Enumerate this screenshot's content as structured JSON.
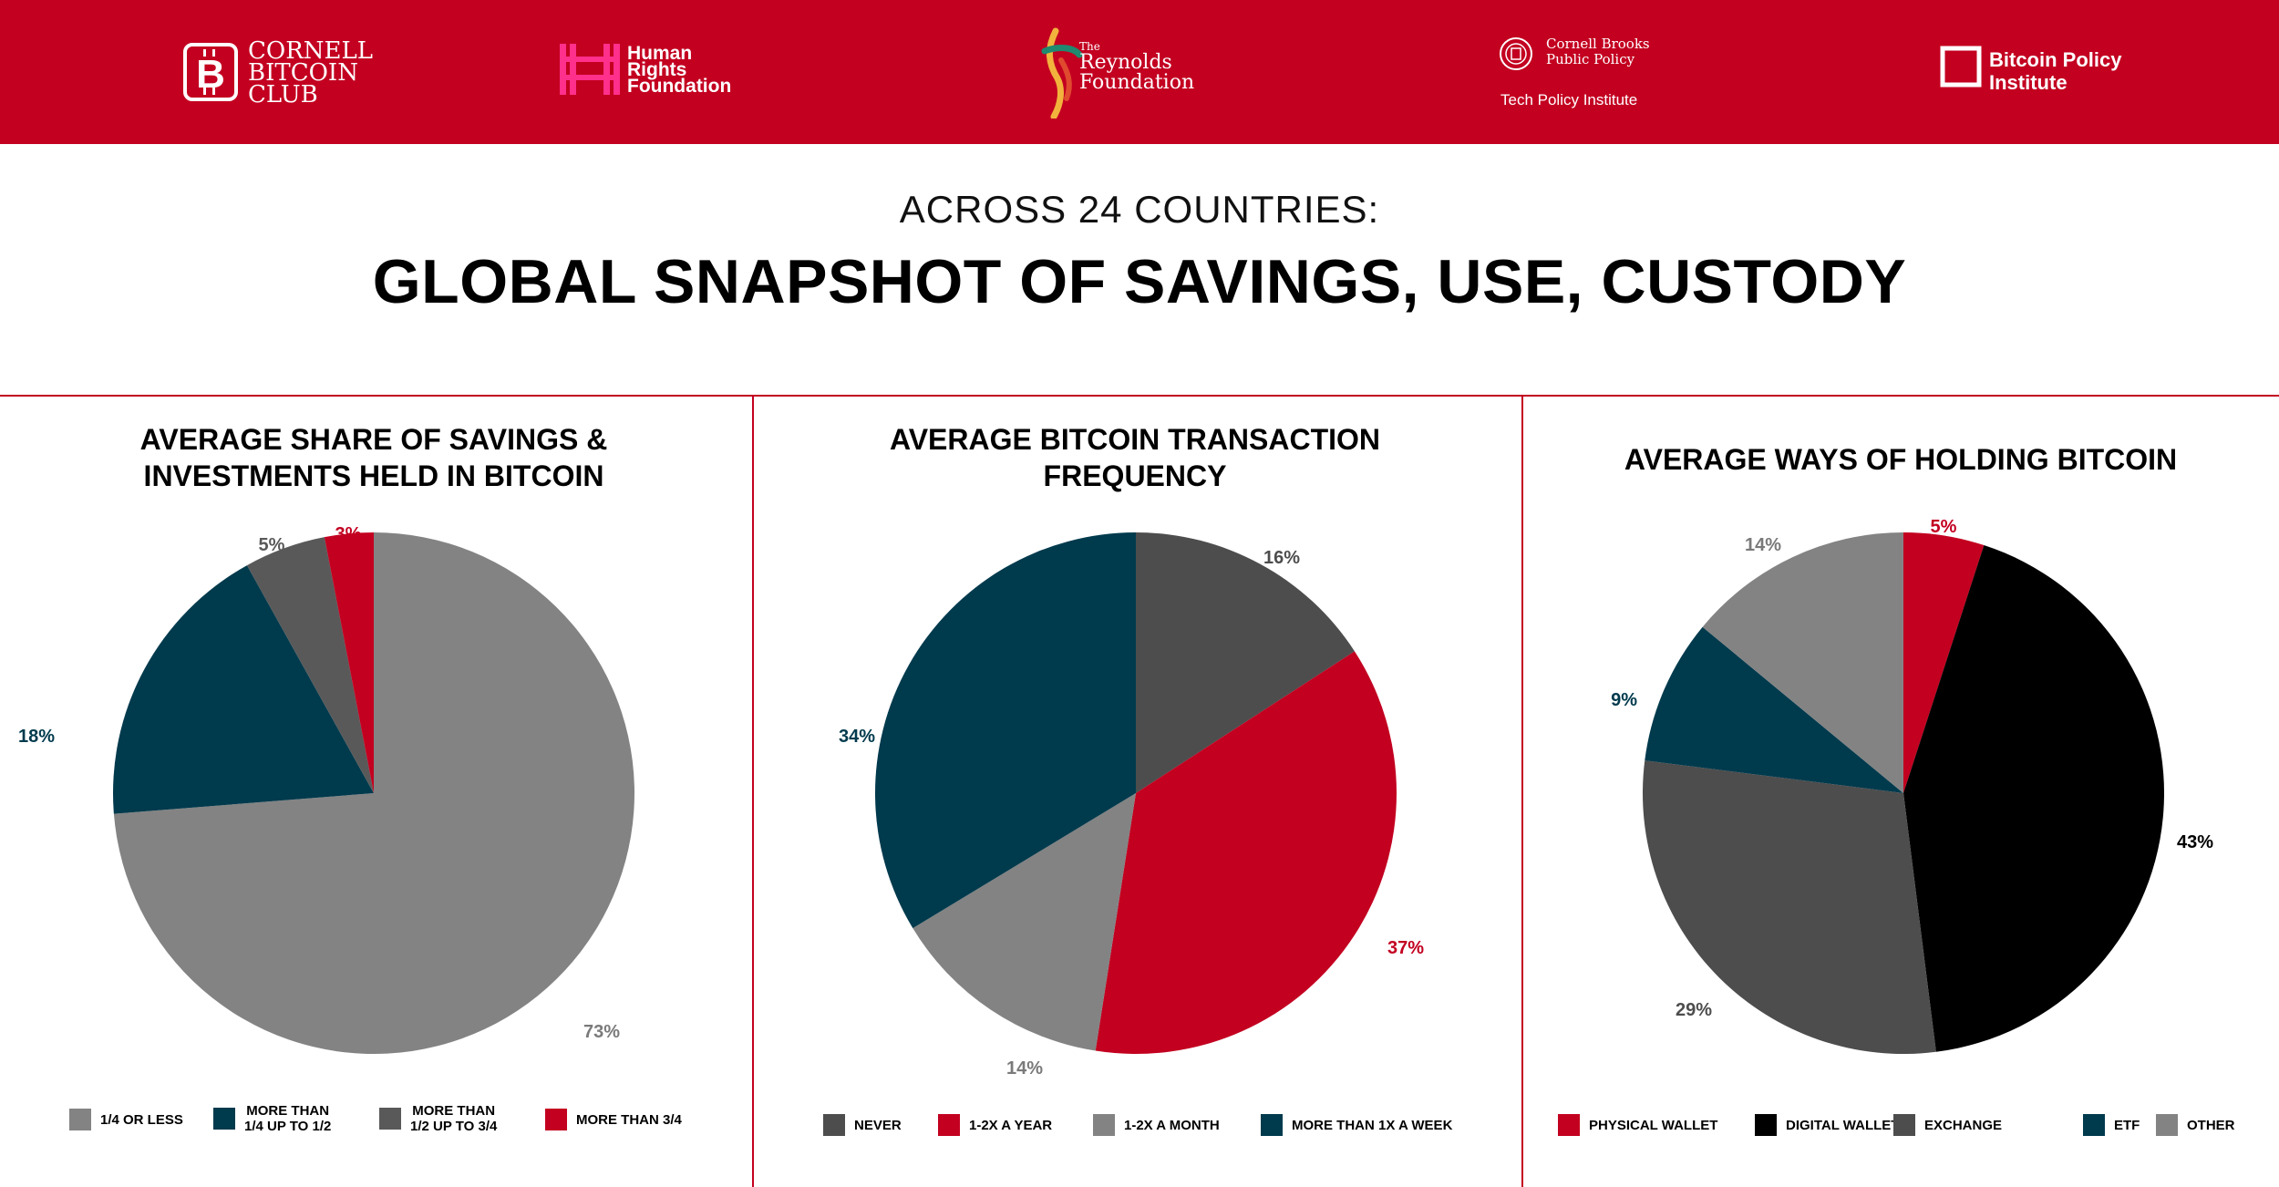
{
  "header": {
    "logos": [
      {
        "name": "cornell-bitcoin-club",
        "lines": [
          "CORNELL",
          "BITCOIN",
          "CLUB"
        ]
      },
      {
        "name": "human-rights-foundation",
        "lines": [
          "Human",
          "Rights",
          "Foundation"
        ]
      },
      {
        "name": "reynolds-foundation",
        "lines": [
          "The",
          "Reynolds",
          "Foundation"
        ]
      },
      {
        "name": "cornell-brooks",
        "lines": [
          "Cornell Brooks",
          "Public Policy",
          "Tech Policy Institute"
        ]
      },
      {
        "name": "bitcoin-policy-institute",
        "lines": [
          "Bitcoin Policy",
          "Institute"
        ]
      }
    ]
  },
  "subtitle": "ACROSS 24 COUNTRIES:",
  "title": "GLOBAL SNAPSHOT OF SAVINGS, USE, CUSTODY",
  "chart_data": [
    {
      "type": "pie",
      "title_lines": [
        "AVERAGE SHARE OF SAVINGS &",
        "INVESTMENTS HELD IN BITCOIN"
      ],
      "slices": [
        {
          "label": "1/4 OR LESS",
          "value": 73,
          "display": "73%",
          "color": "#838383"
        },
        {
          "label": "MORE THAN 1/4 UP TO 1/2",
          "value": 18,
          "display": "18%",
          "color": "#003a4d"
        },
        {
          "label": "MORE THAN 1/2 UP TO 3/4",
          "value": 5,
          "display": "5%",
          "color": "#595959"
        },
        {
          "label": "MORE THAN 3/4",
          "value": 3,
          "display": "3%",
          "color": "#c30020"
        }
      ],
      "direction": "clockwise-from-top",
      "legend_position": "bottom",
      "legend": [
        {
          "lines": [
            "1/4 OR LESS"
          ],
          "color": "#838383"
        },
        {
          "lines": [
            "MORE THAN",
            "1/4 UP TO 1/2"
          ],
          "color": "#003a4d"
        },
        {
          "lines": [
            "MORE THAN",
            "1/2 UP TO 3/4"
          ],
          "color": "#595959"
        },
        {
          "lines": [
            "MORE THAN 3/4"
          ],
          "color": "#c30020"
        }
      ]
    },
    {
      "type": "pie",
      "title_lines": [
        "AVERAGE BITCOIN TRANSACTION",
        "FREQUENCY"
      ],
      "slices": [
        {
          "label": "NEVER",
          "value": 16,
          "display": "16%",
          "color": "#4d4d4d"
        },
        {
          "label": "1-2X A YEAR",
          "value": 37,
          "display": "37%",
          "color": "#c30020"
        },
        {
          "label": "1-2X A MONTH",
          "value": 14,
          "display": "14%",
          "color": "#838383"
        },
        {
          "label": "MORE THAN 1X A WEEK",
          "value": 34,
          "display": "34%",
          "color": "#003a4d"
        }
      ],
      "direction": "clockwise-from-top",
      "legend_position": "bottom",
      "legend": [
        {
          "lines": [
            "NEVER"
          ],
          "color": "#4d4d4d"
        },
        {
          "lines": [
            "1-2X A YEAR"
          ],
          "color": "#c30020"
        },
        {
          "lines": [
            "1-2X A MONTH"
          ],
          "color": "#838383"
        },
        {
          "lines": [
            "MORE THAN 1X A WEEK"
          ],
          "color": "#003a4d"
        }
      ]
    },
    {
      "type": "pie",
      "title_lines": [
        "AVERAGE WAYS OF HOLDING BITCOIN"
      ],
      "slices": [
        {
          "label": "PHYSICAL WALLET",
          "value": 5,
          "display": "5%",
          "color": "#c30020"
        },
        {
          "label": "DIGITAL WALLET",
          "value": 43,
          "display": "43%",
          "color": "#000000"
        },
        {
          "label": "EXCHANGE",
          "value": 29,
          "display": "29%",
          "color": "#4d4d4d"
        },
        {
          "label": "ETF",
          "value": 9,
          "display": "9%",
          "color": "#003a4d"
        },
        {
          "label": "OTHER",
          "value": 14,
          "display": "14%",
          "color": "#838383"
        }
      ],
      "direction": "clockwise-from-top",
      "legend_position": "bottom",
      "legend": [
        {
          "lines": [
            "PHYSICAL WALLET"
          ],
          "color": "#c30020"
        },
        {
          "lines": [
            "DIGITAL WALLET"
          ],
          "color": "#000000"
        },
        {
          "lines": [
            "EXCHANGE"
          ],
          "color": "#4d4d4d"
        },
        {
          "lines": [
            "ETF"
          ],
          "color": "#003a4d"
        },
        {
          "lines": [
            "OTHER"
          ],
          "color": "#838383"
        }
      ]
    }
  ]
}
